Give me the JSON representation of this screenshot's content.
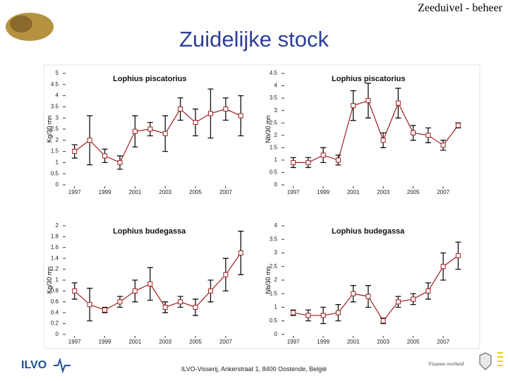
{
  "header": {
    "title": "Zeeduivel - beheer"
  },
  "slide": {
    "title": "Zuidelijke stock"
  },
  "footer": {
    "address": "ILVO-Visserij, Ankerstraat 1, 8400 Oostende, België",
    "logo": "ILVO",
    "government": "Vlaamse overheid"
  },
  "chart_data": [
    {
      "type": "line",
      "title": "Lophius piscatorius",
      "y_label": "Kg/30 mn",
      "color": "#a01e1e",
      "x": [
        1997,
        1998,
        1999,
        2000,
        2001,
        2002,
        2003,
        2004,
        2005,
        2006,
        2007,
        2008
      ],
      "values": [
        1.5,
        2.0,
        1.3,
        1.0,
        2.4,
        2.5,
        2.3,
        3.4,
        2.8,
        3.2,
        3.4,
        3.1
      ],
      "errors": [
        0.3,
        1.1,
        0.3,
        0.3,
        0.7,
        0.3,
        0.8,
        0.5,
        0.6,
        1.1,
        0.5,
        0.9
      ],
      "xlim": [
        1996.5,
        2008.5
      ],
      "xticks": [
        1997,
        1999,
        2001,
        2003,
        2005,
        2007
      ],
      "ylim": [
        0,
        5
      ],
      "yticks": [
        0,
        0.5,
        1,
        1.5,
        2,
        2.5,
        3,
        3.5,
        4,
        4.5,
        5
      ]
    },
    {
      "type": "line",
      "title": "Lophius piscatorius",
      "y_label": "Nb/30 mn",
      "color": "#a01e1e",
      "x": [
        1997,
        1998,
        1999,
        2000,
        2001,
        2002,
        2003,
        2004,
        2005,
        2006,
        2007,
        2008
      ],
      "values": [
        0.9,
        0.9,
        1.2,
        1.0,
        3.2,
        3.4,
        1.8,
        3.3,
        2.1,
        2.0,
        1.6,
        2.4
      ],
      "errors": [
        0.2,
        0.2,
        0.3,
        0.2,
        0.6,
        0.7,
        0.3,
        0.6,
        0.3,
        0.3,
        0.2,
        0.1
      ],
      "xlim": [
        1996.5,
        2008.5
      ],
      "xticks": [
        1997,
        1999,
        2001,
        2003,
        2005,
        2007
      ],
      "ylim": [
        0,
        4.5
      ],
      "yticks": [
        0,
        0.5,
        1,
        1.5,
        2,
        2.5,
        3,
        3.5,
        4,
        4.5
      ]
    },
    {
      "type": "line",
      "title": "Lophius budegassa",
      "y_label": "Kg/30 mn",
      "color": "#a01e1e",
      "x": [
        1997,
        1998,
        1999,
        2000,
        2001,
        2002,
        2003,
        2004,
        2005,
        2006,
        2007,
        2008
      ],
      "values": [
        0.8,
        0.55,
        0.45,
        0.6,
        0.8,
        0.93,
        0.5,
        0.6,
        0.5,
        0.8,
        1.1,
        1.5
      ],
      "errors": [
        0.15,
        0.3,
        0.05,
        0.1,
        0.2,
        0.3,
        0.1,
        0.1,
        0.15,
        0.2,
        0.3,
        0.4
      ],
      "xlim": [
        1996.5,
        2008.5
      ],
      "xticks": [
        1997,
        1999,
        2001,
        2003,
        2005,
        2007
      ],
      "ylim": [
        0,
        2
      ],
      "yticks": [
        0,
        0.2,
        0.4,
        0.6,
        0.8,
        1,
        1.2,
        1.4,
        1.6,
        1.8,
        2
      ]
    },
    {
      "type": "line",
      "title": "Lophius budegassa",
      "y_label": "Nb/30 mn",
      "color": "#a01e1e",
      "x": [
        1997,
        1998,
        1999,
        2000,
        2001,
        2002,
        2003,
        2004,
        2005,
        2006,
        2007,
        2008
      ],
      "values": [
        0.8,
        0.7,
        0.7,
        0.8,
        1.5,
        1.4,
        0.5,
        1.2,
        1.3,
        1.6,
        2.5,
        2.9
      ],
      "errors": [
        0.1,
        0.2,
        0.3,
        0.3,
        0.3,
        0.4,
        0.1,
        0.2,
        0.2,
        0.3,
        0.5,
        0.5
      ],
      "xlim": [
        1996.5,
        2008.5
      ],
      "xticks": [
        1997,
        1999,
        2001,
        2003,
        2005,
        2007
      ],
      "ylim": [
        0,
        4
      ],
      "yticks": [
        0,
        0.5,
        1,
        1.5,
        2,
        2.5,
        3,
        3.5,
        4
      ]
    }
  ]
}
